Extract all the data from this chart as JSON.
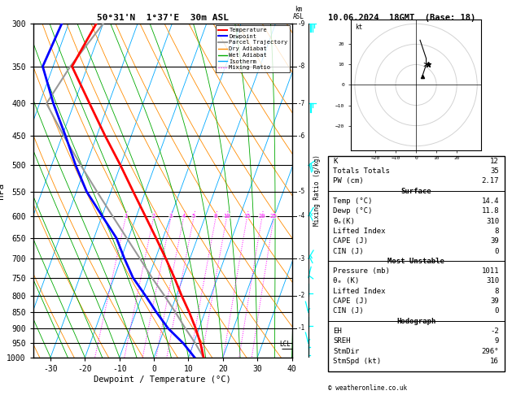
{
  "title_left": "50°31'N  1°37'E  30m ASL",
  "title_right": "10.06.2024  18GMT  (Base: 18)",
  "xlabel": "Dewpoint / Temperature (°C)",
  "ylabel_left": "hPa",
  "pressure_levels": [
    300,
    350,
    400,
    450,
    500,
    550,
    600,
    650,
    700,
    750,
    800,
    850,
    900,
    950,
    1000
  ],
  "x_min": -35,
  "x_max": 40,
  "p_min": 300,
  "p_max": 1000,
  "temp_profile_p": [
    1000,
    950,
    900,
    850,
    800,
    750,
    700,
    650,
    600,
    550,
    500,
    450,
    400,
    350,
    300
  ],
  "temp_profile_t": [
    14.4,
    12.0,
    9.0,
    5.5,
    1.5,
    -2.5,
    -7.0,
    -12.0,
    -17.5,
    -23.5,
    -30.0,
    -37.5,
    -45.5,
    -54.5,
    -52.0
  ],
  "dewp_profile_p": [
    1000,
    950,
    900,
    850,
    800,
    750,
    700,
    650,
    600,
    550,
    500,
    450,
    400,
    350,
    300
  ],
  "dewp_profile_t": [
    11.8,
    7.0,
    1.0,
    -4.0,
    -9.0,
    -14.5,
    -19.0,
    -23.5,
    -30.0,
    -37.0,
    -43.0,
    -49.0,
    -56.0,
    -63.0,
    -62.0
  ],
  "parcel_profile_p": [
    1000,
    950,
    900,
    850,
    800,
    750,
    700,
    650,
    600,
    550,
    500,
    450,
    400,
    350,
    300
  ],
  "parcel_profile_t": [
    14.4,
    10.5,
    6.0,
    1.5,
    -3.5,
    -9.0,
    -14.5,
    -20.5,
    -27.0,
    -34.0,
    -41.5,
    -49.5,
    -58.0,
    -55.0,
    -50.0
  ],
  "temp_color": "#ff0000",
  "dewp_color": "#0000ff",
  "parcel_color": "#999999",
  "dry_adiabat_color": "#ff8c00",
  "wet_adiabat_color": "#00aa00",
  "isotherm_color": "#00aaff",
  "mixing_ratio_color": "#ff00ff",
  "lcl_pressure": 970,
  "mixing_ratio_lines": [
    1,
    2,
    3,
    4,
    5,
    8,
    10,
    15,
    20,
    25
  ],
  "km_labels": {
    "300": "9",
    "350": "8",
    "400": "7",
    "450": "6",
    "500": "",
    "550": "5",
    "600": "4",
    "650": "",
    "700": "3",
    "750": "",
    "800": "2",
    "850": "",
    "900": "1",
    "950": "",
    "1000": ""
  },
  "stats": {
    "K": 12,
    "Totals Totals": 35,
    "PW (cm)": 2.17,
    "Surface_Temp": 14.4,
    "Surface_Dewp": 11.8,
    "Surface_theta_e": 310,
    "Surface_LI": 8,
    "Surface_CAPE": 39,
    "Surface_CIN": 0,
    "MU_Pressure": 1011,
    "MU_theta_e": 310,
    "MU_LI": 8,
    "MU_CAPE": 39,
    "MU_CIN": 0,
    "Hodo_EH": -2,
    "Hodo_SREH": 9,
    "Hodo_StmDir": 296,
    "Hodo_StmSpd": 16
  },
  "bg_color": "#ffffff"
}
